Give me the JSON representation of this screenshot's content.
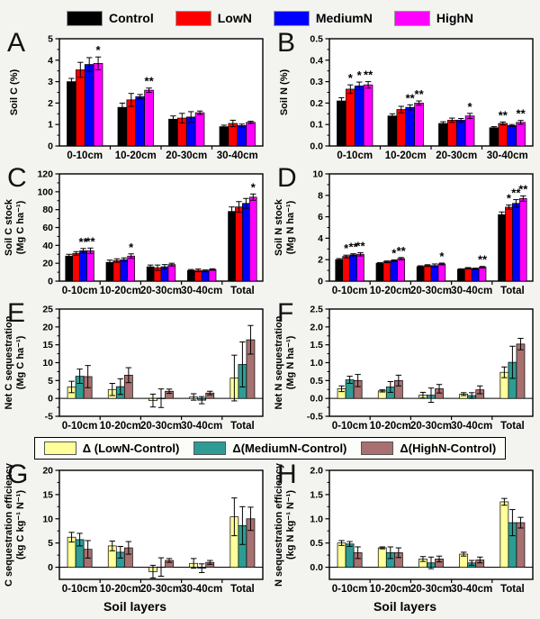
{
  "figure": {
    "background": "#f3f3f0",
    "xlabel": "Soil layers",
    "legends": [
      {
        "id": "treatments",
        "items": [
          {
            "label": "Control",
            "color": "#000000"
          },
          {
            "label": "LowN",
            "color": "#ff0000"
          },
          {
            "label": "MediumN",
            "color": "#0000ff"
          },
          {
            "label": "HighN",
            "color": "#ff00ff"
          }
        ]
      },
      {
        "id": "deltas",
        "items": [
          {
            "label": "Δ (LowN-Control)",
            "color": "#ffff99"
          },
          {
            "label": "Δ(MediumN-Control)",
            "color": "#2e9c94"
          },
          {
            "label": "Δ(HighN-Control)",
            "color": "#a87070"
          }
        ]
      }
    ]
  },
  "chart_data": [
    {
      "panel": "A",
      "type": "bar",
      "ylabel": [
        "Soil C (%)"
      ],
      "ylim": [
        0,
        5
      ],
      "yticks": [
        0,
        1,
        2,
        3,
        4,
        5
      ],
      "ytick_labels": [
        "0",
        "1",
        "2",
        "3",
        "4",
        "5"
      ],
      "categories": [
        "0-10cm",
        "10-20cm",
        "20-30cm",
        "30-40cm"
      ],
      "series": [
        {
          "name": "Control",
          "color": "#000000",
          "values": [
            3.0,
            1.8,
            1.25,
            0.9
          ],
          "errors": [
            0.15,
            0.2,
            0.15,
            0.07
          ]
        },
        {
          "name": "LowN",
          "color": "#ff0000",
          "values": [
            3.55,
            2.15,
            1.3,
            1.05
          ],
          "errors": [
            0.35,
            0.3,
            0.22,
            0.15
          ]
        },
        {
          "name": "MediumN",
          "color": "#0000ff",
          "values": [
            3.8,
            2.3,
            1.35,
            0.95
          ],
          "errors": [
            0.32,
            0.1,
            0.25,
            0.07
          ]
        },
        {
          "name": "HighN",
          "color": "#ff00ff",
          "values": [
            3.85,
            2.6,
            1.55,
            1.1
          ],
          "errors": [
            0.3,
            0.1,
            0.08,
            0.05
          ]
        }
      ],
      "significance": [
        {
          "series": "HighN",
          "category": "0-10cm",
          "mark": "*"
        },
        {
          "series": "HighN",
          "category": "10-20cm",
          "mark": "**"
        }
      ]
    },
    {
      "panel": "B",
      "type": "bar",
      "ylabel": [
        "Soil N (%)"
      ],
      "ylim": [
        0,
        0.5
      ],
      "yticks": [
        0,
        0.1,
        0.2,
        0.3,
        0.4,
        0.5
      ],
      "ytick_labels": [
        "0.0",
        "0.1",
        "0.2",
        "0.3",
        "0.4",
        "0.5"
      ],
      "categories": [
        "0-10cm",
        "10-20cm",
        "20-30cm",
        "30-40cm"
      ],
      "series": [
        {
          "name": "Control",
          "color": "#000000",
          "values": [
            0.21,
            0.14,
            0.105,
            0.085
          ],
          "errors": [
            0.015,
            0.01,
            0.008,
            0.005
          ]
        },
        {
          "name": "LowN",
          "color": "#ff0000",
          "values": [
            0.265,
            0.17,
            0.12,
            0.105
          ],
          "errors": [
            0.02,
            0.015,
            0.01,
            0.007
          ]
        },
        {
          "name": "MediumN",
          "color": "#0000ff",
          "values": [
            0.28,
            0.18,
            0.12,
            0.095
          ],
          "errors": [
            0.018,
            0.012,
            0.008,
            0.005
          ]
        },
        {
          "name": "HighN",
          "color": "#ff00ff",
          "values": [
            0.285,
            0.2,
            0.14,
            0.11
          ],
          "errors": [
            0.015,
            0.01,
            0.012,
            0.009
          ]
        }
      ],
      "significance": [
        {
          "series": "LowN",
          "category": "0-10cm",
          "mark": "*"
        },
        {
          "series": "MediumN",
          "category": "0-10cm",
          "mark": "*"
        },
        {
          "series": "HighN",
          "category": "0-10cm",
          "mark": "**"
        },
        {
          "series": "MediumN",
          "category": "10-20cm",
          "mark": "**"
        },
        {
          "series": "HighN",
          "category": "10-20cm",
          "mark": "**"
        },
        {
          "series": "HighN",
          "category": "20-30cm",
          "mark": "*"
        },
        {
          "series": "LowN",
          "category": "30-40cm",
          "mark": "**"
        },
        {
          "series": "HighN",
          "category": "30-40cm",
          "mark": "**"
        }
      ]
    },
    {
      "panel": "C",
      "type": "bar",
      "ylabel": [
        "Soil C stock",
        "(Mg C ha⁻¹)"
      ],
      "ylim": [
        0,
        120
      ],
      "yticks": [
        0,
        20,
        40,
        60,
        80,
        100,
        120
      ],
      "ytick_labels": [
        "0",
        "20",
        "40",
        "60",
        "80",
        "100",
        "120"
      ],
      "categories": [
        "0-10cm",
        "10-20cm",
        "20-30cm",
        "30-40cm",
        "Total"
      ],
      "series": [
        {
          "name": "Control",
          "color": "#000000",
          "values": [
            28,
            21,
            16,
            12,
            78
          ],
          "errors": [
            2,
            2.5,
            2,
            1,
            5
          ]
        },
        {
          "name": "LowN",
          "color": "#ff0000",
          "values": [
            31,
            23,
            15,
            12,
            83
          ],
          "errors": [
            2,
            2,
            3,
            1.5,
            6
          ]
        },
        {
          "name": "MediumN",
          "color": "#0000ff",
          "values": [
            34,
            24,
            16,
            11.5,
            87
          ],
          "errors": [
            2.5,
            2,
            2.5,
            1,
            5.5
          ]
        },
        {
          "name": "HighN",
          "color": "#ff00ff",
          "values": [
            34,
            28,
            18.5,
            13,
            94
          ],
          "errors": [
            3,
            2.5,
            1.5,
            0.8,
            3.5
          ]
        }
      ],
      "significance": [
        {
          "series": "MediumN",
          "category": "0-10cm",
          "mark": "**"
        },
        {
          "series": "HighN",
          "category": "0-10cm",
          "mark": "**"
        },
        {
          "series": "HighN",
          "category": "10-20cm",
          "mark": "*"
        },
        {
          "series": "HighN",
          "category": "Total",
          "mark": "*"
        }
      ]
    },
    {
      "panel": "D",
      "type": "bar",
      "ylabel": [
        "Soil N stock",
        "(Mg N ha⁻¹)"
      ],
      "ylim": [
        0,
        10
      ],
      "yticks": [
        0,
        2,
        4,
        6,
        8,
        10
      ],
      "ytick_labels": [
        "0",
        "2",
        "4",
        "6",
        "8",
        "10"
      ],
      "categories": [
        "0-10cm",
        "10-20cm",
        "20-30cm",
        "30-40cm",
        "Total"
      ],
      "series": [
        {
          "name": "Control",
          "color": "#000000",
          "values": [
            2.0,
            1.65,
            1.35,
            1.1,
            6.2
          ],
          "errors": [
            0.1,
            0.08,
            0.08,
            0.05,
            0.25
          ]
        },
        {
          "name": "LowN",
          "color": "#ff0000",
          "values": [
            2.3,
            1.8,
            1.45,
            1.2,
            6.9
          ],
          "errors": [
            0.12,
            0.08,
            0.08,
            0.06,
            0.2
          ]
        },
        {
          "name": "MediumN",
          "color": "#0000ff",
          "values": [
            2.45,
            1.9,
            1.45,
            1.15,
            7.25
          ],
          "errors": [
            0.1,
            0.08,
            0.15,
            0.06,
            0.35
          ]
        },
        {
          "name": "HighN",
          "color": "#ff00ff",
          "values": [
            2.5,
            2.1,
            1.6,
            1.3,
            7.7
          ],
          "errors": [
            0.15,
            0.1,
            0.08,
            0.07,
            0.25
          ]
        }
      ],
      "significance": [
        {
          "series": "LowN",
          "category": "0-10cm",
          "mark": "*"
        },
        {
          "series": "MediumN",
          "category": "0-10cm",
          "mark": "**"
        },
        {
          "series": "HighN",
          "category": "0-10cm",
          "mark": "**"
        },
        {
          "series": "MediumN",
          "category": "10-20cm",
          "mark": "*"
        },
        {
          "series": "HighN",
          "category": "10-20cm",
          "mark": "**"
        },
        {
          "series": "HighN",
          "category": "20-30cm",
          "mark": "*"
        },
        {
          "series": "HighN",
          "category": "30-40cm",
          "mark": "**"
        },
        {
          "series": "LowN",
          "category": "Total",
          "mark": "*"
        },
        {
          "series": "MediumN",
          "category": "Total",
          "mark": "**"
        },
        {
          "series": "HighN",
          "category": "Total",
          "mark": "**"
        }
      ]
    },
    {
      "panel": "E",
      "type": "bar",
      "ylabel": [
        "Net C sequestration",
        "(Mg C ha⁻¹)"
      ],
      "ylim": [
        -5,
        25
      ],
      "yticks": [
        -5,
        0,
        5,
        10,
        15,
        20,
        25
      ],
      "ytick_labels": [
        "-5",
        "0",
        "5",
        "10",
        "15",
        "20",
        "25"
      ],
      "categories": [
        "0-10cm",
        "10-20cm",
        "20-30cm",
        "30-40cm",
        "Total"
      ],
      "series": [
        {
          "name": "Δ (LowN-Control)",
          "color": "#ffff99",
          "values": [
            3.2,
            2.5,
            -0.6,
            0.4,
            5.7
          ],
          "errors": [
            1.6,
            1.7,
            1.8,
            0.9,
            6.4
          ]
        },
        {
          "name": "Δ(MediumN-Control)",
          "color": "#2e9c94",
          "values": [
            6.2,
            3.3,
            0.05,
            -0.5,
            9.5
          ],
          "errors": [
            2.0,
            2.2,
            2.6,
            1.0,
            6.3
          ]
        },
        {
          "name": "Δ(HighN-Control)",
          "color": "#a87070",
          "values": [
            6.1,
            6.5,
            2.0,
            1.5,
            16.4
          ],
          "errors": [
            3.1,
            2.1,
            0.6,
            0.5,
            4.0
          ]
        }
      ],
      "significance": []
    },
    {
      "panel": "F",
      "type": "bar",
      "ylabel": [
        "Net N sequestration",
        "(Mg N ha⁻¹)"
      ],
      "ylim": [
        -0.5,
        2.5
      ],
      "yticks": [
        -0.5,
        0,
        0.5,
        1,
        1.5,
        2,
        2.5
      ],
      "ytick_labels": [
        "-0.5",
        "0.0",
        "0.5",
        "1.0",
        "1.5",
        "2.0",
        "2.5"
      ],
      "categories": [
        "0-10cm",
        "10-20cm",
        "20-30cm",
        "30-40cm",
        "Total"
      ],
      "series": [
        {
          "name": "Δ (LowN-Control)",
          "color": "#ffff99",
          "values": [
            0.27,
            0.21,
            0.09,
            0.12,
            0.73
          ],
          "errors": [
            0.08,
            0.03,
            0.08,
            0.04,
            0.15
          ]
        },
        {
          "name": "Δ(MediumN-Control)",
          "color": "#2e9c94",
          "values": [
            0.52,
            0.32,
            0.09,
            0.08,
            1.01
          ],
          "errors": [
            0.1,
            0.15,
            0.2,
            0.08,
            0.45
          ]
        },
        {
          "name": "Δ(HighN-Control)",
          "color": "#a87070",
          "values": [
            0.5,
            0.5,
            0.27,
            0.24,
            1.52
          ],
          "errors": [
            0.17,
            0.15,
            0.12,
            0.11,
            0.16
          ]
        }
      ],
      "significance": []
    },
    {
      "panel": "G",
      "type": "bar",
      "ylabel": [
        "C sequestration efficiency",
        "(kg C kg⁻¹ N⁻¹)"
      ],
      "ylim": [
        -2.5,
        20
      ],
      "yticks": [
        0,
        5,
        10,
        15,
        20
      ],
      "ytick_labels": [
        "0",
        "5",
        "10",
        "15",
        "20"
      ],
      "categories": [
        "0-10cm",
        "10-20cm",
        "20-30cm",
        "30-40cm",
        "Total"
      ],
      "xlabel": "Soil layers",
      "series": [
        {
          "name": "Δ (LowN-Control)",
          "color": "#ffff99",
          "values": [
            6.2,
            4.4,
            -0.9,
            0.8,
            10.4
          ],
          "errors": [
            1.0,
            1.0,
            1.3,
            1.0,
            3.9
          ]
        },
        {
          "name": "Δ(MediumN-Control)",
          "color": "#2e9c94",
          "values": [
            5.7,
            3.1,
            0.05,
            -0.2,
            8.6
          ],
          "errors": [
            1.3,
            1.2,
            1.9,
            0.9,
            3.9
          ]
        },
        {
          "name": "Δ(HighN-Control)",
          "color": "#a87070",
          "values": [
            3.7,
            4.0,
            1.4,
            1.0,
            10.0
          ],
          "errors": [
            1.8,
            1.3,
            0.4,
            0.4,
            2.4
          ]
        }
      ],
      "significance": []
    },
    {
      "panel": "H",
      "type": "bar",
      "ylabel": [
        "N sequestration efficiency",
        "(kg N kg⁻¹ N⁻¹)"
      ],
      "ylim": [
        -0.25,
        2
      ],
      "yticks": [
        0,
        0.5,
        1,
        1.5,
        2
      ],
      "ytick_labels": [
        "0.0",
        "0.5",
        "1.0",
        "1.5",
        "2.0"
      ],
      "categories": [
        "0-10cm",
        "10-20cm",
        "20-30cm",
        "30-40cm",
        "Total"
      ],
      "xlabel": "Soil layers",
      "series": [
        {
          "name": "Δ (LowN-Control)",
          "color": "#ffff99",
          "values": [
            0.5,
            0.4,
            0.17,
            0.27,
            1.35
          ],
          "errors": [
            0.05,
            0.02,
            0.05,
            0.04,
            0.07
          ]
        },
        {
          "name": "Δ(MediumN-Control)",
          "color": "#2e9c94",
          "values": [
            0.48,
            0.3,
            0.09,
            0.09,
            0.92
          ],
          "errors": [
            0.05,
            0.12,
            0.12,
            0.05,
            0.27
          ]
        },
        {
          "name": "Δ(HighN-Control)",
          "color": "#a87070",
          "values": [
            0.3,
            0.3,
            0.17,
            0.15,
            0.92
          ],
          "errors": [
            0.12,
            0.1,
            0.06,
            0.06,
            0.11
          ]
        }
      ],
      "significance": []
    }
  ]
}
